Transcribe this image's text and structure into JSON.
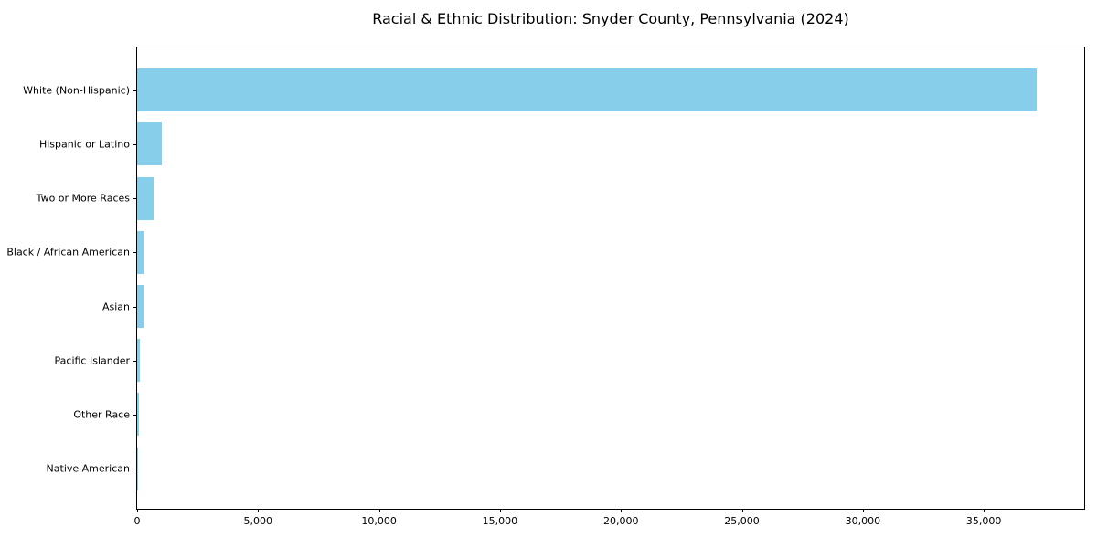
{
  "chart_data": {
    "type": "bar",
    "orientation": "horizontal",
    "title": "Racial & Ethnic Distribution: Snyder County, Pennsylvania (2024)",
    "xlabel": "",
    "ylabel": "",
    "categories": [
      "White (Non-Hispanic)",
      "Hispanic or Latino",
      "Two or More Races",
      "Black / African American",
      "Asian",
      "Pacific Islander",
      "Other Race",
      "Native American"
    ],
    "values": [
      37200,
      1020,
      680,
      250,
      270,
      130,
      90,
      30
    ],
    "bar_color": "#87CEEB",
    "xlim": [
      0,
      39150
    ],
    "x_ticks": [
      0,
      5000,
      10000,
      15000,
      20000,
      25000,
      30000,
      35000
    ],
    "x_tick_labels": [
      "0",
      "5,000",
      "10,000",
      "15,000",
      "20,000",
      "25,000",
      "30,000",
      "35,000"
    ],
    "grid": false,
    "legend": null
  }
}
